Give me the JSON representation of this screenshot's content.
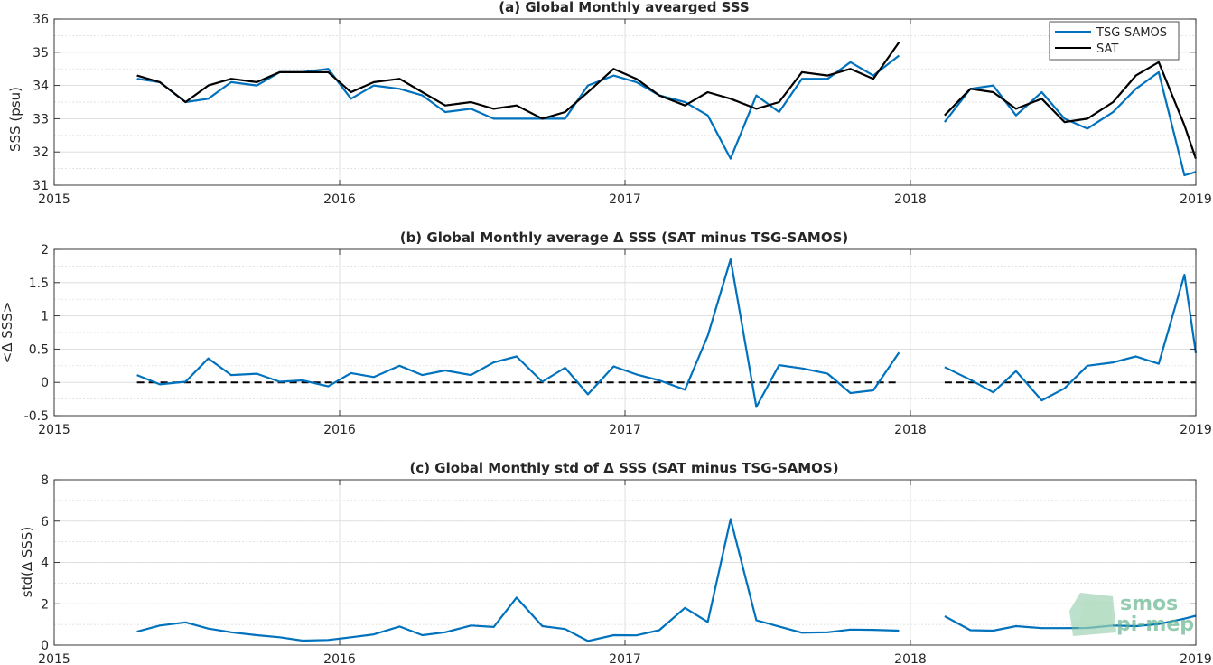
{
  "figure": {
    "colors": {
      "tsg": "#0072bd",
      "sat": "#000000",
      "axis": "#262626",
      "grid": "#d9d9d9"
    },
    "logo": {
      "line1": "smos",
      "line2": "pi-mep"
    }
  },
  "chart_data": [
    {
      "type": "line",
      "title": "(a) Global Monthly avearged SSS",
      "xlabel": "",
      "ylabel": "SSS (psu)",
      "xlim": [
        2015,
        2019
      ],
      "ylim": [
        31,
        36
      ],
      "x_ticks": [
        "2015",
        "2016",
        "2017",
        "2018",
        "2019"
      ],
      "y_ticks": [
        "31",
        "32",
        "33",
        "34",
        "35",
        "36"
      ],
      "grid": true,
      "legend": {
        "placement": "top-right",
        "entries": [
          "TSG-SAMOS",
          "SAT"
        ]
      },
      "x": [
        2015.29,
        2015.37,
        2015.46,
        2015.54,
        2015.62,
        2015.71,
        2015.79,
        2015.87,
        2015.96,
        2016.04,
        2016.12,
        2016.21,
        2016.29,
        2016.37,
        2016.46,
        2016.54,
        2016.62,
        2016.71,
        2016.79,
        2016.87,
        2016.96,
        2017.04,
        2017.12,
        2017.21,
        2017.29,
        2017.37,
        2017.46,
        2017.54,
        2017.62,
        2017.71,
        2017.79,
        2017.87,
        2017.96,
        2018.12,
        2018.21,
        2018.29,
        2018.37,
        2018.46,
        2018.54,
        2018.62,
        2018.71,
        2018.79,
        2018.87,
        2018.96,
        2019.0
      ],
      "series": [
        {
          "name": "TSG-SAMOS",
          "values": [
            34.2,
            34.1,
            33.5,
            33.6,
            34.1,
            34.0,
            34.4,
            34.4,
            34.5,
            33.6,
            34.0,
            33.9,
            33.7,
            33.2,
            33.3,
            33.0,
            33.0,
            33.0,
            33.0,
            34.0,
            34.3,
            34.1,
            33.7,
            33.5,
            33.1,
            31.8,
            33.7,
            33.2,
            34.2,
            34.2,
            34.7,
            34.3,
            34.9,
            32.9,
            33.9,
            34.0,
            33.1,
            33.8,
            33.0,
            32.7,
            33.2,
            33.9,
            34.4,
            31.3,
            31.4
          ]
        },
        {
          "name": "SAT",
          "values": [
            34.3,
            34.1,
            33.5,
            34.0,
            34.2,
            34.1,
            34.4,
            34.4,
            34.4,
            33.8,
            34.1,
            34.2,
            33.8,
            33.4,
            33.5,
            33.3,
            33.4,
            33.0,
            33.2,
            33.8,
            34.5,
            34.2,
            33.7,
            33.4,
            33.8,
            33.6,
            33.3,
            33.5,
            34.4,
            34.3,
            34.5,
            34.2,
            35.3,
            33.1,
            33.9,
            33.8,
            33.3,
            33.6,
            32.9,
            33.0,
            33.5,
            34.3,
            34.7,
            32.8,
            31.8
          ]
        }
      ]
    },
    {
      "type": "line",
      "title": "(b) Global Monthly average Δ SSS (SAT minus TSG-SAMOS)",
      "xlabel": "",
      "ylabel": "<Δ SSS>",
      "xlim": [
        2015,
        2019
      ],
      "ylim": [
        -0.5,
        2
      ],
      "x_ticks": [
        "2015",
        "2016",
        "2017",
        "2018",
        "2019"
      ],
      "y_ticks": [
        "-0.5",
        "0",
        "0.5",
        "1",
        "1.5",
        "2"
      ],
      "grid": true,
      "x": [
        2015.29,
        2015.37,
        2015.46,
        2015.54,
        2015.62,
        2015.71,
        2015.79,
        2015.87,
        2015.96,
        2016.04,
        2016.12,
        2016.21,
        2016.29,
        2016.37,
        2016.46,
        2016.54,
        2016.62,
        2016.71,
        2016.79,
        2016.87,
        2016.96,
        2017.04,
        2017.12,
        2017.21,
        2017.29,
        2017.37,
        2017.46,
        2017.54,
        2017.62,
        2017.71,
        2017.79,
        2017.87,
        2017.96,
        2018.12,
        2018.21,
        2018.29,
        2018.37,
        2018.46,
        2018.54,
        2018.62,
        2018.71,
        2018.79,
        2018.87,
        2018.96,
        2019.0
      ],
      "series": [
        {
          "name": "",
          "values": [
            0.11,
            -0.03,
            0.01,
            0.36,
            0.11,
            0.13,
            0.01,
            0.03,
            -0.06,
            0.14,
            0.08,
            0.25,
            0.11,
            0.18,
            0.11,
            0.3,
            0.39,
            0.01,
            0.22,
            -0.18,
            0.24,
            0.12,
            0.03,
            -0.11,
            0.7,
            1.85,
            -0.37,
            0.26,
            0.21,
            0.13,
            -0.16,
            -0.12,
            0.45,
            0.23,
            0.04,
            -0.15,
            0.17,
            -0.27,
            -0.09,
            0.25,
            0.3,
            0.39,
            0.28,
            1.62,
            0.44
          ]
        }
      ],
      "reference_segments": [
        [
          2015.29,
          2017.96
        ],
        [
          2018.12,
          2019.0
        ]
      ]
    },
    {
      "type": "line",
      "title": "(c) Global Monthly std of Δ SSS (SAT minus TSG-SAMOS)",
      "xlabel": "",
      "ylabel": "std(Δ SSS)",
      "xlim": [
        2015,
        2019
      ],
      "ylim": [
        0,
        8
      ],
      "x_ticks": [
        "2015",
        "2016",
        "2017",
        "2018",
        "2019"
      ],
      "y_ticks": [
        "0",
        "2",
        "4",
        "6",
        "8"
      ],
      "grid": true,
      "x": [
        2015.29,
        2015.37,
        2015.46,
        2015.54,
        2015.62,
        2015.71,
        2015.79,
        2015.87,
        2015.96,
        2016.04,
        2016.12,
        2016.21,
        2016.29,
        2016.37,
        2016.46,
        2016.54,
        2016.62,
        2016.71,
        2016.79,
        2016.87,
        2016.96,
        2017.04,
        2017.12,
        2017.21,
        2017.29,
        2017.37,
        2017.46,
        2017.54,
        2017.62,
        2017.71,
        2017.79,
        2017.87,
        2017.96,
        2018.12,
        2018.21,
        2018.29,
        2018.37,
        2018.46,
        2018.54,
        2018.62,
        2018.71,
        2018.79,
        2018.87,
        2018.96,
        2019.0
      ],
      "series": [
        {
          "name": "",
          "values": [
            0.65,
            0.95,
            1.1,
            0.8,
            0.62,
            0.48,
            0.38,
            0.22,
            0.25,
            0.38,
            0.52,
            0.9,
            0.48,
            0.62,
            0.95,
            0.88,
            2.3,
            0.92,
            0.78,
            0.2,
            0.48,
            0.47,
            0.72,
            1.8,
            1.12,
            6.1,
            1.2,
            0.9,
            0.6,
            0.62,
            0.75,
            0.74,
            0.7,
            1.4,
            0.72,
            0.7,
            0.92,
            0.82,
            0.82,
            0.83,
            0.95,
            0.92,
            1.02,
            1.28,
            1.42
          ]
        }
      ]
    }
  ]
}
